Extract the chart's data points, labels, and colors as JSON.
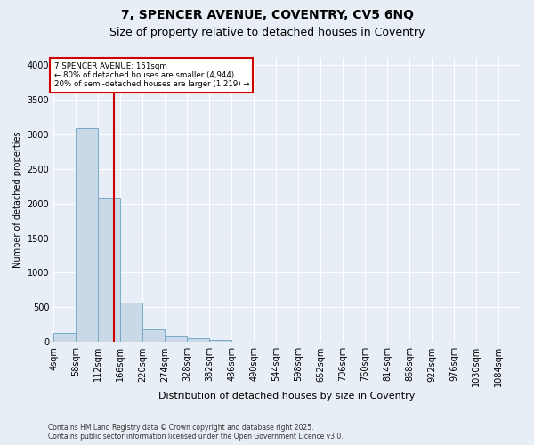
{
  "title_line1": "7, SPENCER AVENUE, COVENTRY, CV5 6NQ",
  "title_line2": "Size of property relative to detached houses in Coventry",
  "xlabel": "Distribution of detached houses by size in Coventry",
  "ylabel": "Number of detached properties",
  "footnote": "Contains HM Land Registry data © Crown copyright and database right 2025.\nContains public sector information licensed under the Open Government Licence v3.0.",
  "bar_color": "#c9d9e8",
  "bar_edge_color": "#7aaac8",
  "background_color": "#e8eef5",
  "annotation_text": "7 SPENCER AVENUE: 151sqm\n← 80% of detached houses are smaller (4,944)\n20% of semi-detached houses are larger (1,219) →",
  "property_size": 151,
  "bin_starts": [
    4,
    58,
    112,
    166,
    220,
    274,
    328,
    382,
    436,
    490,
    544,
    598,
    652,
    706,
    760,
    814,
    868,
    922,
    976,
    1030,
    1084
  ],
  "bin_width": 54,
  "bar_heights": [
    130,
    3090,
    2070,
    575,
    185,
    75,
    50,
    35,
    0,
    0,
    0,
    0,
    0,
    0,
    0,
    0,
    0,
    0,
    0,
    0,
    0
  ],
  "ylim": [
    0,
    4100
  ],
  "yticks": [
    0,
    500,
    1000,
    1500,
    2000,
    2500,
    3000,
    3500,
    4000
  ],
  "grid_color": "#ffffff",
  "vline_color": "#cc0000",
  "box_edge_color": "#cc0000",
  "box_face_color": "#ffffff",
  "title_fontsize": 10,
  "subtitle_fontsize": 9,
  "ylabel_fontsize": 7,
  "xlabel_fontsize": 8,
  "tick_fontsize": 7,
  "footnote_fontsize": 5.5
}
